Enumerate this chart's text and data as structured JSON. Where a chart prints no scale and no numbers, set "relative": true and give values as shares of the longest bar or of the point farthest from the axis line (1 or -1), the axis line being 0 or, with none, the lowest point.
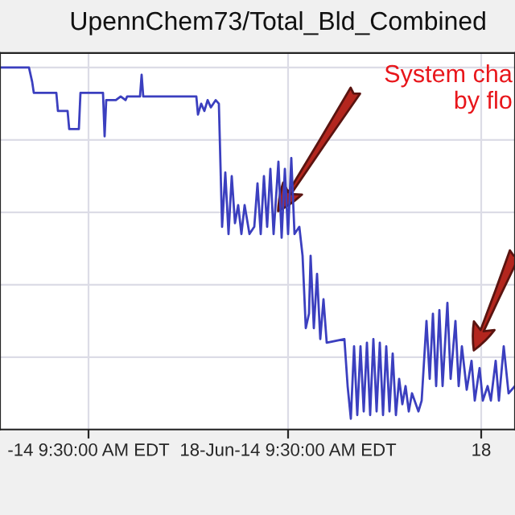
{
  "chart_data": {
    "type": "line",
    "title": "UpennChem73/Total_Bld_Combined",
    "relative": true,
    "grid": true,
    "xlim": [
      "2014-05-04T15:30",
      "2014-07-23T15:30"
    ],
    "xticks": [
      {
        "value": "2014-05-18T09:30",
        "label": "-14 9:30:00 AM EDT"
      },
      {
        "value": "2014-06-18T09:30",
        "label": "18-Jun-14 9:30:00 AM EDT"
      },
      {
        "value": "2014-07-18T09:30",
        "label": "18"
      }
    ],
    "annotations": [
      "System cha\nby flo"
    ],
    "series": [
      {
        "color": "#3b3fbf",
        "x": [
          "2014-05-04T15:30",
          "2014-05-09T03:30",
          "2014-05-09T15:30",
          "2014-05-09T21:30",
          "2014-05-13T09:30",
          "2014-05-13T15:30",
          "2014-05-15T03:30",
          "2014-05-15T09:30",
          "2014-05-16T21:30",
          "2014-05-17T03:30",
          "2014-05-20T15:30",
          "2014-05-20T21:30",
          "2014-05-21T03:30",
          "2014-05-22T03:30",
          "2014-05-22T15:30",
          "2014-05-23T09:30",
          "2014-05-24T03:30",
          "2014-05-24T09:30",
          "2014-05-26T09:30",
          "2014-05-26T15:30",
          "2014-05-26T21:30",
          "2014-05-28T09:30",
          "2014-06-04T03:30",
          "2014-06-04T09:30",
          "2014-06-04T21:30",
          "2014-06-05T09:30",
          "2014-06-05T21:30",
          "2014-06-06T09:30",
          "2014-06-07T03:30",
          "2014-06-07T15:30",
          "2014-06-08T03:30",
          "2014-06-08T15:30",
          "2014-06-09T03:30",
          "2014-06-09T15:30",
          "2014-06-10T03:30",
          "2014-06-10T15:30",
          "2014-06-11T03:30",
          "2014-06-11T15:30",
          "2014-06-12T09:30",
          "2014-06-13T03:30",
          "2014-06-13T15:30",
          "2014-06-14T03:30",
          "2014-06-14T15:30",
          "2014-06-15T03:30",
          "2014-06-15T15:30",
          "2014-06-16T03:30",
          "2014-06-16T21:30",
          "2014-06-17T09:30",
          "2014-06-17T21:30",
          "2014-06-18T09:30",
          "2014-06-18T21:30",
          "2014-06-19T09:30",
          "2014-06-20T03:30",
          "2014-06-20T15:30",
          "2014-06-21T03:30",
          "2014-06-21T15:30",
          "2014-06-21T21:30",
          "2014-06-22T09:30",
          "2014-06-22T21:30",
          "2014-06-23T09:30",
          "2014-06-23T21:30",
          "2014-06-24T09:30",
          "2014-06-27T03:30",
          "2014-06-27T15:30",
          "2014-06-28T03:30",
          "2014-06-28T15:30",
          "2014-06-29T03:30",
          "2014-06-29T15:30",
          "2014-06-30T03:30",
          "2014-06-30T15:30",
          "2014-07-01T03:30",
          "2014-07-01T15:30",
          "2014-07-02T03:30",
          "2014-07-02T15:30",
          "2014-07-03T03:30",
          "2014-07-03T15:30",
          "2014-07-04T03:30",
          "2014-07-04T15:30",
          "2014-07-05T03:30",
          "2014-07-05T15:30",
          "2014-07-06T03:30",
          "2014-07-06T15:30",
          "2014-07-07T03:30",
          "2014-07-07T15:30",
          "2014-07-08T15:30",
          "2014-07-09T03:30",
          "2014-07-09T21:30",
          "2014-07-10T09:30",
          "2014-07-10T21:30",
          "2014-07-11T09:30",
          "2014-07-11T21:30",
          "2014-07-12T09:30",
          "2014-07-13T03:30",
          "2014-07-13T15:30",
          "2014-07-14T09:30",
          "2014-07-14T21:30",
          "2014-07-15T09:30",
          "2014-07-16T03:30",
          "2014-07-16T21:30",
          "2014-07-17T09:30",
          "2014-07-18T03:30",
          "2014-07-18T15:30",
          "2014-07-19T09:30",
          "2014-07-19T21:30",
          "2014-07-20T15:30",
          "2014-07-21T03:30",
          "2014-07-21T21:30",
          "2014-07-22T15:30",
          "2014-07-23T15:30"
        ],
        "values": [
          1.0,
          1.0,
          0.96,
          0.93,
          0.93,
          0.88,
          0.88,
          0.83,
          0.83,
          0.93,
          0.93,
          0.81,
          0.91,
          0.91,
          0.91,
          0.92,
          0.91,
          0.92,
          0.92,
          0.98,
          0.92,
          0.92,
          0.92,
          0.87,
          0.9,
          0.88,
          0.91,
          0.89,
          0.91,
          0.9,
          0.56,
          0.71,
          0.54,
          0.7,
          0.57,
          0.62,
          0.54,
          0.62,
          0.54,
          0.56,
          0.68,
          0.54,
          0.7,
          0.56,
          0.72,
          0.54,
          0.74,
          0.53,
          0.72,
          0.54,
          0.75,
          0.54,
          0.56,
          0.48,
          0.28,
          0.32,
          0.48,
          0.28,
          0.43,
          0.25,
          0.36,
          0.24,
          0.25,
          0.12,
          0.03,
          0.23,
          0.04,
          0.23,
          0.05,
          0.24,
          0.04,
          0.25,
          0.05,
          0.24,
          0.04,
          0.23,
          0.05,
          0.21,
          0.04,
          0.14,
          0.07,
          0.12,
          0.05,
          0.1,
          0.05,
          0.08,
          0.3,
          0.14,
          0.32,
          0.12,
          0.33,
          0.12,
          0.35,
          0.14,
          0.3,
          0.12,
          0.23,
          0.11,
          0.19,
          0.08,
          0.17,
          0.08,
          0.12,
          0.08,
          0.19,
          0.08,
          0.23,
          0.1,
          0.12
        ]
      }
    ]
  }
}
